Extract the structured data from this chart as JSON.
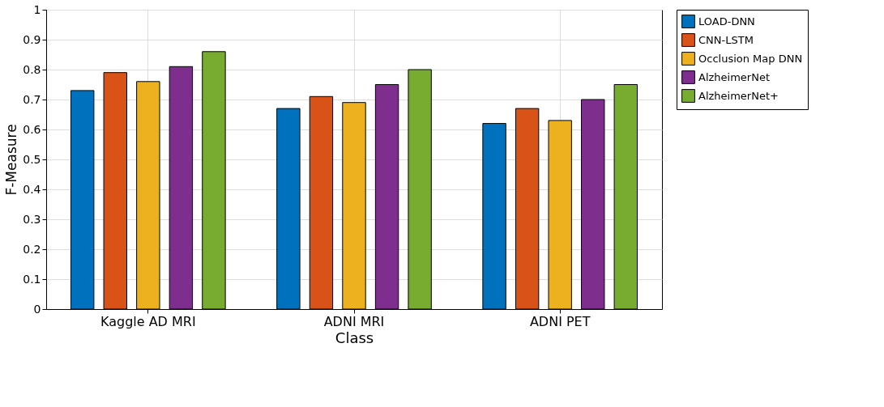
{
  "chart_data": {
    "type": "bar",
    "xlabel": "Class",
    "ylabel": "F-Measure",
    "categories": [
      "Kaggle AD MRI",
      "ADNI MRI",
      "ADNI PET"
    ],
    "series": [
      {
        "name": "LOAD-DNN",
        "color": "#0072bd",
        "values": [
          0.73,
          0.67,
          0.62
        ]
      },
      {
        "name": "CNN-LSTM",
        "color": "#d95319",
        "values": [
          0.79,
          0.71,
          0.67
        ]
      },
      {
        "name": "Occlusion Map DNN",
        "color": "#edb120",
        "values": [
          0.76,
          0.69,
          0.63
        ]
      },
      {
        "name": "AlzheimerNet",
        "color": "#7e2f8e",
        "values": [
          0.81,
          0.75,
          0.7
        ]
      },
      {
        "name": "AlzheimerNet+",
        "color": "#77ac30",
        "values": [
          0.86,
          0.8,
          0.75
        ]
      }
    ],
    "ylim": [
      0,
      1
    ],
    "yticks": [
      0,
      0.1,
      0.2,
      0.3,
      0.4,
      0.5,
      0.6,
      0.7,
      0.8,
      0.9,
      1
    ],
    "grid": true,
    "legend": "right"
  }
}
